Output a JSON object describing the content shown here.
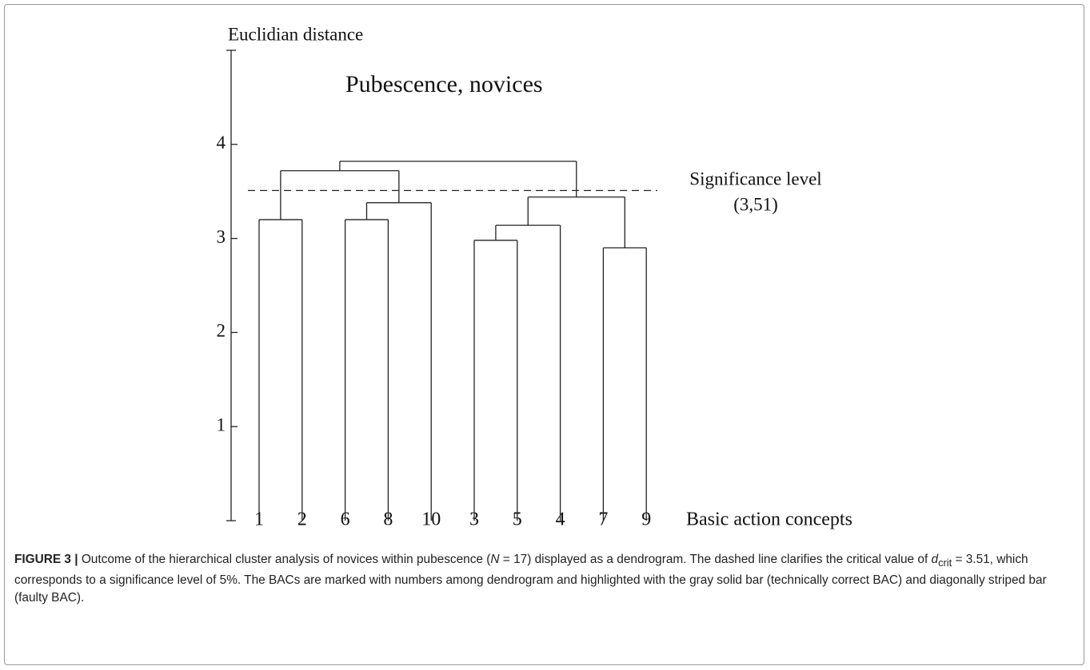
{
  "chart_data": {
    "type": "dendrogram",
    "title": "Pubescence, novices",
    "y_label": "Euclidian distance",
    "x_label": "Basic action concepts",
    "ylim": [
      0,
      5
    ],
    "yticks": [
      1,
      2,
      3,
      4
    ],
    "leaves": [
      "1",
      "2",
      "6",
      "8",
      "10",
      "3",
      "5",
      "4",
      "7",
      "9"
    ],
    "merges": [
      {
        "a": 0,
        "b": 1,
        "height": 3.2
      },
      {
        "a": 2,
        "b": 3,
        "height": 3.2
      },
      {
        "a": 11,
        "b": 4,
        "height": 3.38
      },
      {
        "a": 5,
        "b": 6,
        "height": 2.98
      },
      {
        "a": 13,
        "b": 7,
        "height": 3.14
      },
      {
        "a": 8,
        "b": 9,
        "height": 2.9
      },
      {
        "a": 14,
        "b": 15,
        "height": 3.44
      },
      {
        "a": 10,
        "b": 12,
        "height": 3.72
      },
      {
        "a": 17,
        "b": 16,
        "height": 3.82
      }
    ],
    "significance": {
      "name": "Significance level",
      "value": 3.51,
      "label": "(3,51)"
    },
    "groups": [
      {
        "from": 0,
        "to": 1,
        "fill": "solid"
      },
      {
        "from": 2,
        "to": 4,
        "fill": "striped"
      },
      {
        "from": 5,
        "to": 7,
        "fill": "solid"
      },
      {
        "from": 8,
        "to": 9,
        "fill": "striped"
      }
    ],
    "color": "#999999"
  },
  "caption": {
    "label": "FIGURE 3 |",
    "t1": " Outcome of the hierarchical cluster analysis of novices within pubescence (",
    "n": "N",
    "t2": " = 17) displayed as a dendrogram. The dashed line clarifies the critical value of ",
    "d": "d",
    "sub": "crit",
    "t3": " = 3.51, which corresponds to a significance level of 5%. The BACs are marked with numbers among dendrogram and highlighted with the gray solid bar (technically correct BAC) and diagonally striped bar (faulty BAC)."
  }
}
